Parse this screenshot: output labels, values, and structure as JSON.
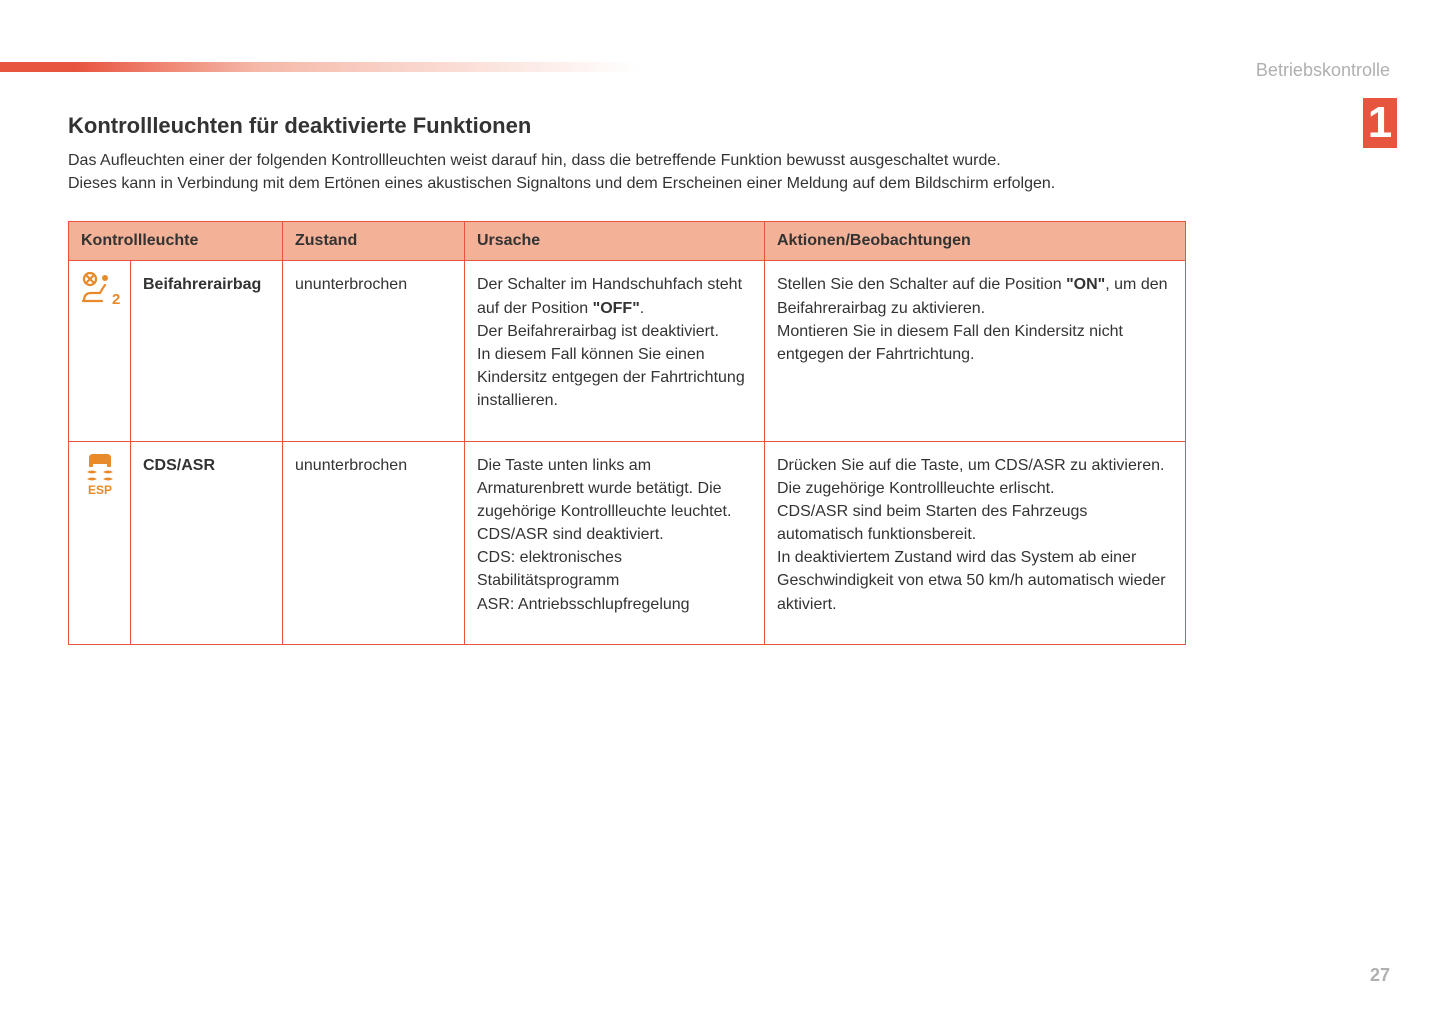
{
  "colors": {
    "accent": "#e8553f",
    "header_bg": "#f3b197",
    "icon": "#e98a2a",
    "text": "#333333",
    "muted": "#b0b0b0",
    "background": "#ffffff"
  },
  "header": {
    "section_label": "Betriebskontrolle",
    "chapter_number": "1"
  },
  "title": "Kontrollleuchten für deaktivierte Funktionen",
  "intro": {
    "line1": "Das Aufleuchten einer der folgenden Kontrollleuchten weist darauf hin, dass die betreffende Funktion bewusst ausgeschaltet wurde.",
    "line2": "Dieses kann in Verbindung mit dem Ertönen eines akustischen Signaltons und dem Erscheinen einer Meldung auf dem Bildschirm erfolgen."
  },
  "table": {
    "columns": {
      "indicator": "Kontrollleuchte",
      "state": "Zustand",
      "cause": "Ursache",
      "actions": "Aktionen/Beobachtungen"
    },
    "rows": [
      {
        "icon_name": "passenger-airbag-off-icon",
        "name": "Beifahrerairbag",
        "state": "ununterbrochen",
        "cause_pre": "Der Schalter im Handschuhfach steht auf der Position ",
        "cause_bold": "\"OFF\"",
        "cause_post": ".\nDer Beifahrerairbag ist deaktiviert.\nIn diesem Fall können Sie einen Kindersitz entgegen der Fahrtrichtung installieren.",
        "action_pre": "Stellen Sie den Schalter auf die Position ",
        "action_bold": "\"ON\"",
        "action_post": ", um den Beifahrerairbag zu aktivieren.\nMontieren Sie in diesem Fall den Kindersitz nicht entgegen der Fahrtrichtung."
      },
      {
        "icon_name": "esp-icon",
        "name": "CDS/ASR",
        "state": "ununterbrochen",
        "cause_pre": "",
        "cause_bold": "",
        "cause_post": "Die Taste unten links am Armaturenbrett wurde betätigt. Die zugehörige Kontrollleuchte leuchtet.\nCDS/ASR sind deaktiviert.\nCDS: elektronisches Stabilitätsprogramm\nASR: Antriebsschlupfregelung",
        "action_pre": "",
        "action_bold": "",
        "action_post": "Drücken Sie auf die Taste, um CDS/ASR zu aktivieren.\nDie zugehörige Kontrollleuchte erlischt.\nCDS/ASR sind beim Starten des Fahrzeugs automatisch funktionsbereit.\nIn deaktiviertem Zustand wird das System ab einer Geschwindigkeit von etwa 50 km/h automatisch wieder aktiviert."
      }
    ]
  },
  "page_number": "27",
  "icons": {
    "esp_label": "ESP"
  }
}
